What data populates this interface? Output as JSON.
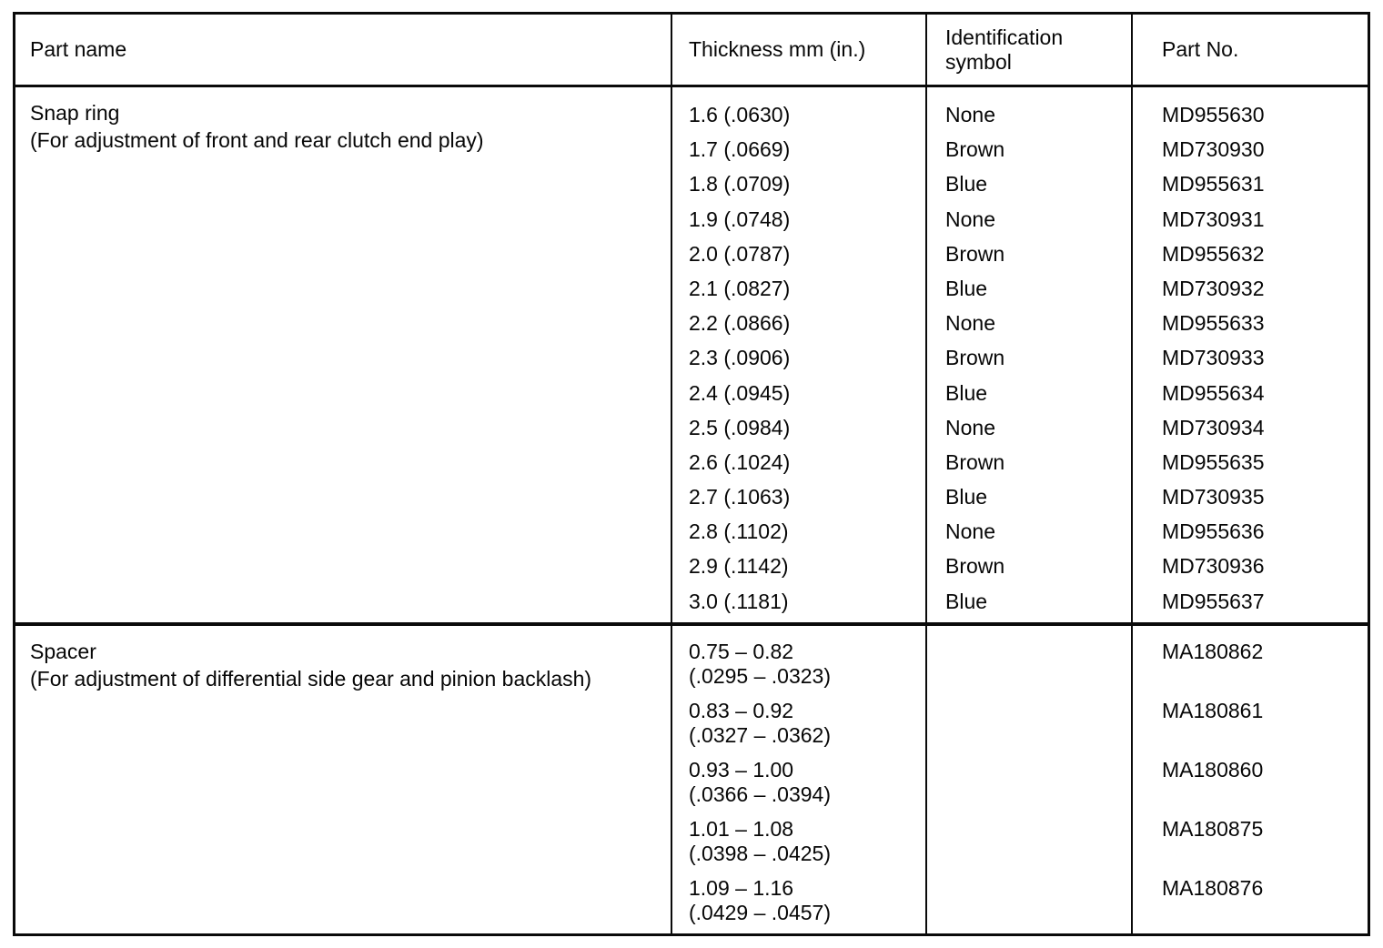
{
  "document": {
    "background_color": "#ffffff",
    "ink_color": "#0a0a0a",
    "kind": "scanned service-manual parts table"
  },
  "table": {
    "columns": [
      "Part name",
      "Thickness mm (in.)",
      "Identification symbol",
      "Part No."
    ],
    "sections": [
      {
        "part_name": "Snap ring",
        "part_note": "(For adjustment of front and rear clutch end play)",
        "rows": [
          {
            "thickness": "1.6 (.0630)",
            "symbol": "None",
            "part_no": "MD955630"
          },
          {
            "thickness": "1.7 (.0669)",
            "symbol": "Brown",
            "part_no": "MD730930"
          },
          {
            "thickness": "1.8 (.0709)",
            "symbol": "Blue",
            "part_no": "MD955631"
          },
          {
            "thickness": "1.9 (.0748)",
            "symbol": "None",
            "part_no": "MD730931"
          },
          {
            "thickness": "2.0 (.0787)",
            "symbol": "Brown",
            "part_no": "MD955632"
          },
          {
            "thickness": "2.1 (.0827)",
            "symbol": "Blue",
            "part_no": "MD730932"
          },
          {
            "thickness": "2.2 (.0866)",
            "symbol": "None",
            "part_no": "MD955633"
          },
          {
            "thickness": "2.3 (.0906)",
            "symbol": "Brown",
            "part_no": "MD730933"
          },
          {
            "thickness": "2.4 (.0945)",
            "symbol": "Blue",
            "part_no": "MD955634"
          },
          {
            "thickness": "2.5 (.0984)",
            "symbol": "None",
            "part_no": "MD730934"
          },
          {
            "thickness": "2.6 (.1024)",
            "symbol": "Brown",
            "part_no": "MD955635"
          },
          {
            "thickness": "2.7 (.1063)",
            "symbol": "Blue",
            "part_no": "MD730935"
          },
          {
            "thickness": "2.8 (.1102)",
            "symbol": "None",
            "part_no": "MD955636"
          },
          {
            "thickness": "2.9 (.1142)",
            "symbol": "Brown",
            "part_no": "MD730936"
          },
          {
            "thickness": "3.0 (.1181)",
            "symbol": "Blue",
            "part_no": "MD955637"
          }
        ]
      },
      {
        "part_name": "Spacer",
        "part_note": "(For adjustment of differential side gear and pinion backlash)",
        "rows": [
          {
            "thickness_mm": "0.75 – 0.82",
            "thickness_in": "(.0295 – .0323)",
            "symbol": "",
            "part_no": "MA180862"
          },
          {
            "thickness_mm": "0.83 – 0.92",
            "thickness_in": "(.0327 – .0362)",
            "symbol": "",
            "part_no": "MA180861"
          },
          {
            "thickness_mm": "0.93 – 1.00",
            "thickness_in": "(.0366 – .0394)",
            "symbol": "",
            "part_no": "MA180860"
          },
          {
            "thickness_mm": "1.01 – 1.08",
            "thickness_in": "(.0398 – .0425)",
            "symbol": "",
            "part_no": "MA180875"
          },
          {
            "thickness_mm": "1.09 – 1.16",
            "thickness_in": "(.0429 – .0457)",
            "symbol": "",
            "part_no": "MA180876"
          }
        ]
      }
    ]
  }
}
